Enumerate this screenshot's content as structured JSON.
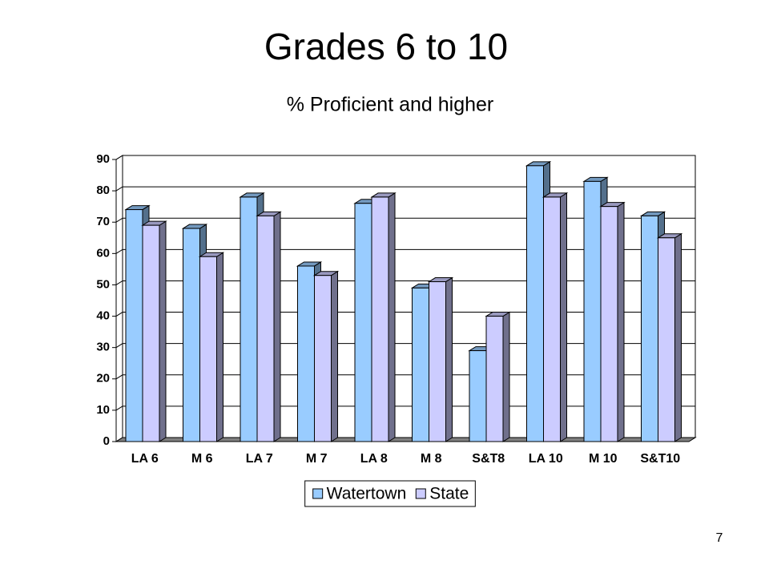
{
  "chart_data": {
    "type": "bar3d",
    "title": "Grades 6 to 10",
    "subtitle": "% Proficient and higher",
    "categories": [
      "LA 6",
      "M 6",
      "LA 7",
      "M 7",
      "LA 8",
      "M 8",
      "S&T8",
      "LA 10",
      "M 10",
      "S&T10"
    ],
    "series": [
      {
        "name": "Watertown",
        "color": "#99ccff",
        "values": [
          74,
          68,
          78,
          56,
          76,
          49,
          29,
          88,
          83,
          72
        ]
      },
      {
        "name": "State",
        "color": "#ccccff",
        "values": [
          69,
          59,
          72,
          53,
          78,
          51,
          40,
          78,
          75,
          65
        ]
      }
    ],
    "ylim": [
      0,
      90
    ],
    "yticks": [
      0,
      10,
      20,
      30,
      40,
      50,
      60,
      70,
      80,
      90
    ],
    "grid": true,
    "legend": "bottom"
  },
  "page_number": "7"
}
